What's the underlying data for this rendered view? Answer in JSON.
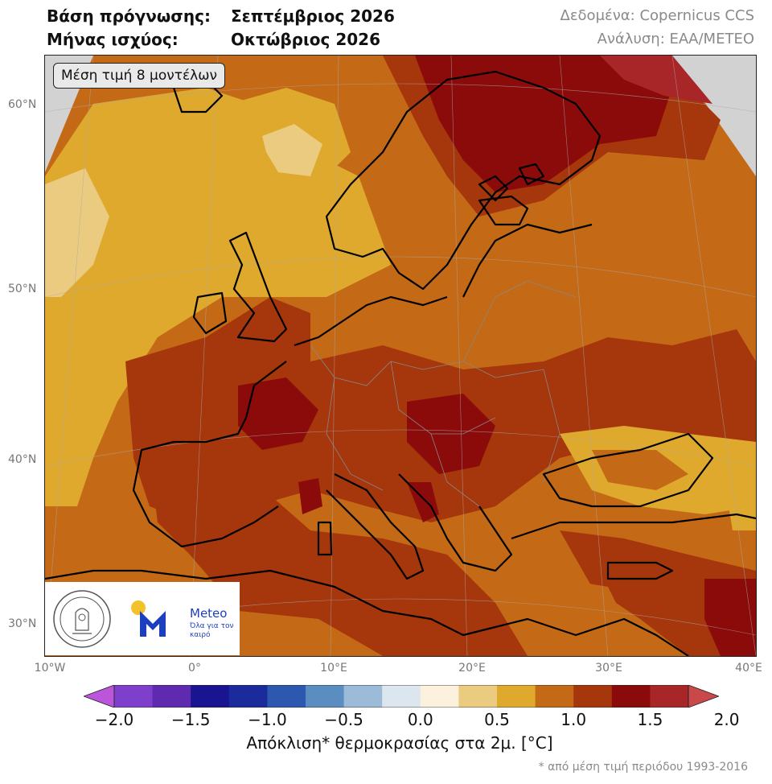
{
  "header": {
    "line1_label": "Βάση πρόγνωσης:",
    "line1_value": "Σεπτέμβριος 2026",
    "line2_label": "Μήνας ισχύος:",
    "line2_value": "Οκτώβριος 2026",
    "data_source": "Δεδομένα: Copernicus CCS",
    "analysis": "Ανάλυση: ΕΑΑ/METEO"
  },
  "map": {
    "badge": "Μέση τιμή 8 μοντέλων",
    "lat_labels": [
      "60°N",
      "50°N",
      "40°N",
      "30°N"
    ],
    "lon_labels": [
      "10°W",
      "0°",
      "10°E",
      "20°E",
      "30°E",
      "40°E"
    ],
    "colors": {
      "outside": "#d2d2d2",
      "c_0_5_to_0_75": "#ebcb80",
      "c_0_75_to_1_0": "#dea92d",
      "c_1_0_to_1_25": "#c46a17",
      "c_1_25_to_1_5": "#a6360c",
      "c_1_5_to_1_75": "#8b0b0a",
      "c_1_75_to_2_0": "#a82628",
      "c_0_25_to_0_5": "#f4e8d0",
      "coastline": "#000000",
      "borders": "#888888"
    }
  },
  "logos": {
    "observatory": "National Observatory of Athens",
    "meteo_name": "Meteo",
    "meteo_tagline": "Όλα για τον καιρό"
  },
  "colorbar": {
    "ticks": [
      "−2.0",
      "−1.5",
      "−1.0",
      "−0.5",
      "0.0",
      "0.5",
      "1.0",
      "1.5",
      "2.0"
    ],
    "label": "Απόκλιση* θερμοκρασίας στα 2μ. [°C]",
    "footnote": "* από μέση τιμή περιόδου 1993-2016",
    "colors": [
      "#bb55d9",
      "#7e3fcc",
      "#5e2bb0",
      "#19148f",
      "#1b2b9c",
      "#2c58b0",
      "#5a8ec1",
      "#9cbbd9",
      "#dce6ef",
      "#fbf1dc",
      "#ebcb80",
      "#dea92d",
      "#c46a17",
      "#a6360c",
      "#8b0b0a",
      "#a82628",
      "#c9494a"
    ]
  }
}
